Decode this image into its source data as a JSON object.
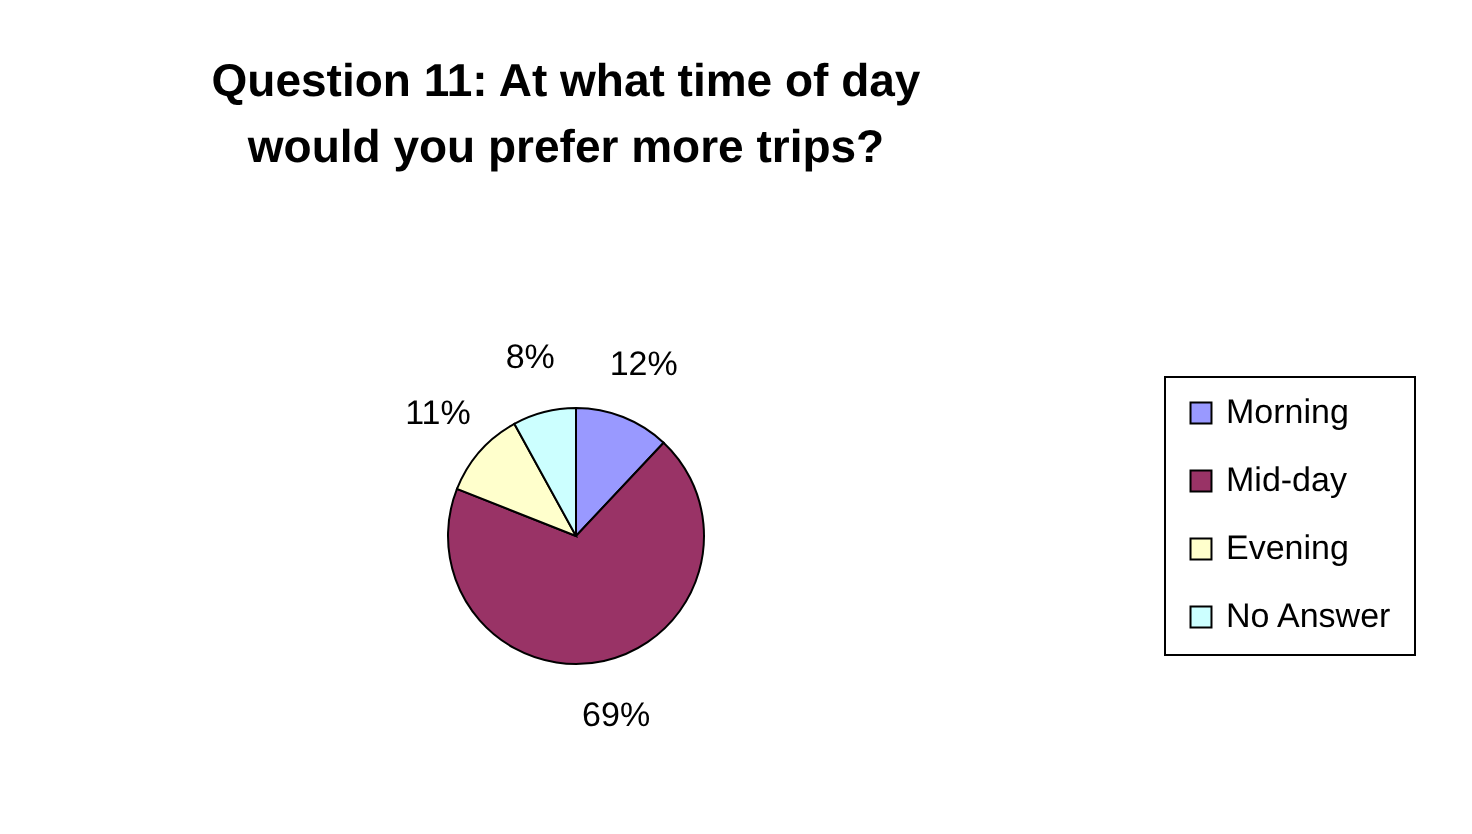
{
  "chart_data": {
    "type": "pie",
    "title": "Question 11:  At what time of day would you prefer more trips?",
    "categories": [
      "Morning",
      "Mid-day",
      "Evening",
      "No Answer"
    ],
    "values": [
      12,
      69,
      11,
      8
    ],
    "colors": [
      "#9999ff",
      "#993366",
      "#ffffcc",
      "#ccffff"
    ],
    "value_labels": [
      "12%",
      "69%",
      "11%",
      "8%"
    ],
    "legend": "right"
  }
}
